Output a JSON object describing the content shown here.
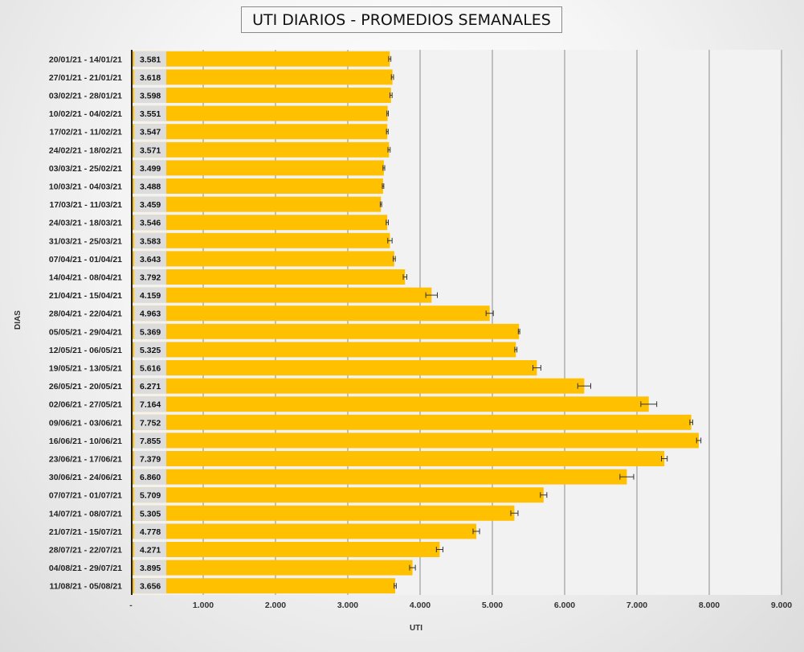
{
  "chart_data": {
    "type": "bar",
    "orientation": "horizontal",
    "title": "UTI DIARIOS - PROMEDIOS SEMANALES",
    "xlabel": "UTI",
    "ylabel": "DIAS",
    "xlim": [
      0,
      9000
    ],
    "xticks": [
      0,
      1000,
      2000,
      3000,
      4000,
      5000,
      6000,
      7000,
      8000,
      9000
    ],
    "xtick_labels": [
      "-",
      "1.000",
      "2.000",
      "3.000",
      "4.000",
      "5.000",
      "6.000",
      "7.000",
      "8.000",
      "9.000"
    ],
    "grid": true,
    "legend": "none",
    "bar_color": "#FFC000",
    "categories": [
      "20/01/21 - 14/01/21",
      "27/01/21 - 21/01/21",
      "03/02/21 - 28/01/21",
      "10/02/21 - 04/02/21",
      "17/02/21 - 11/02/21",
      "24/02/21 - 18/02/21",
      "03/03/21 - 25/02/21",
      "10/03/21 - 04/03/21",
      "17/03/21 - 11/03/21",
      "24/03/21 - 18/03/21",
      "31/03/21 - 25/03/21",
      "07/04/21 - 01/04/21",
      "14/04/21 - 08/04/21",
      "21/04/21 - 15/04/21",
      "28/04/21 - 22/04/21",
      "05/05/21 - 29/04/21",
      "12/05/21 - 06/05/21",
      "19/05/21 - 13/05/21",
      "26/05/21 - 20/05/21",
      "02/06/21 - 27/05/21",
      "09/06/21 - 03/06/21",
      "16/06/21 - 10/06/21",
      "23/06/21 - 17/06/21",
      "30/06/21 - 24/06/21",
      "07/07/21 - 01/07/21",
      "14/07/21 - 08/07/21",
      "21/07/21 - 15/07/21",
      "28/07/21 - 22/07/21",
      "04/08/21 - 29/07/21",
      "11/08/21 - 05/08/21"
    ],
    "values": [
      3581,
      3618,
      3598,
      3551,
      3547,
      3571,
      3499,
      3488,
      3459,
      3546,
      3583,
      3643,
      3792,
      4159,
      4963,
      5369,
      5325,
      5616,
      6271,
      7164,
      7752,
      7855,
      7379,
      6860,
      5709,
      5305,
      4778,
      4271,
      3895,
      3656
    ],
    "value_labels": [
      "3.581",
      "3.618",
      "3.598",
      "3.551",
      "3.547",
      "3.571",
      "3.499",
      "3.488",
      "3.459",
      "3.546",
      "3.583",
      "3.643",
      "3.792",
      "4.159",
      "4.963",
      "5.369",
      "5.325",
      "5.616",
      "6.271",
      "7.164",
      "7.752",
      "7.855",
      "7.379",
      "6.860",
      "5.709",
      "5.305",
      "4.778",
      "4.271",
      "3.895",
      "3.656"
    ],
    "error_bars": [
      15,
      15,
      15,
      10,
      12,
      15,
      12,
      10,
      10,
      15,
      30,
      15,
      25,
      80,
      50,
      10,
      15,
      55,
      90,
      110,
      20,
      30,
      40,
      95,
      45,
      50,
      45,
      45,
      40,
      15
    ]
  }
}
